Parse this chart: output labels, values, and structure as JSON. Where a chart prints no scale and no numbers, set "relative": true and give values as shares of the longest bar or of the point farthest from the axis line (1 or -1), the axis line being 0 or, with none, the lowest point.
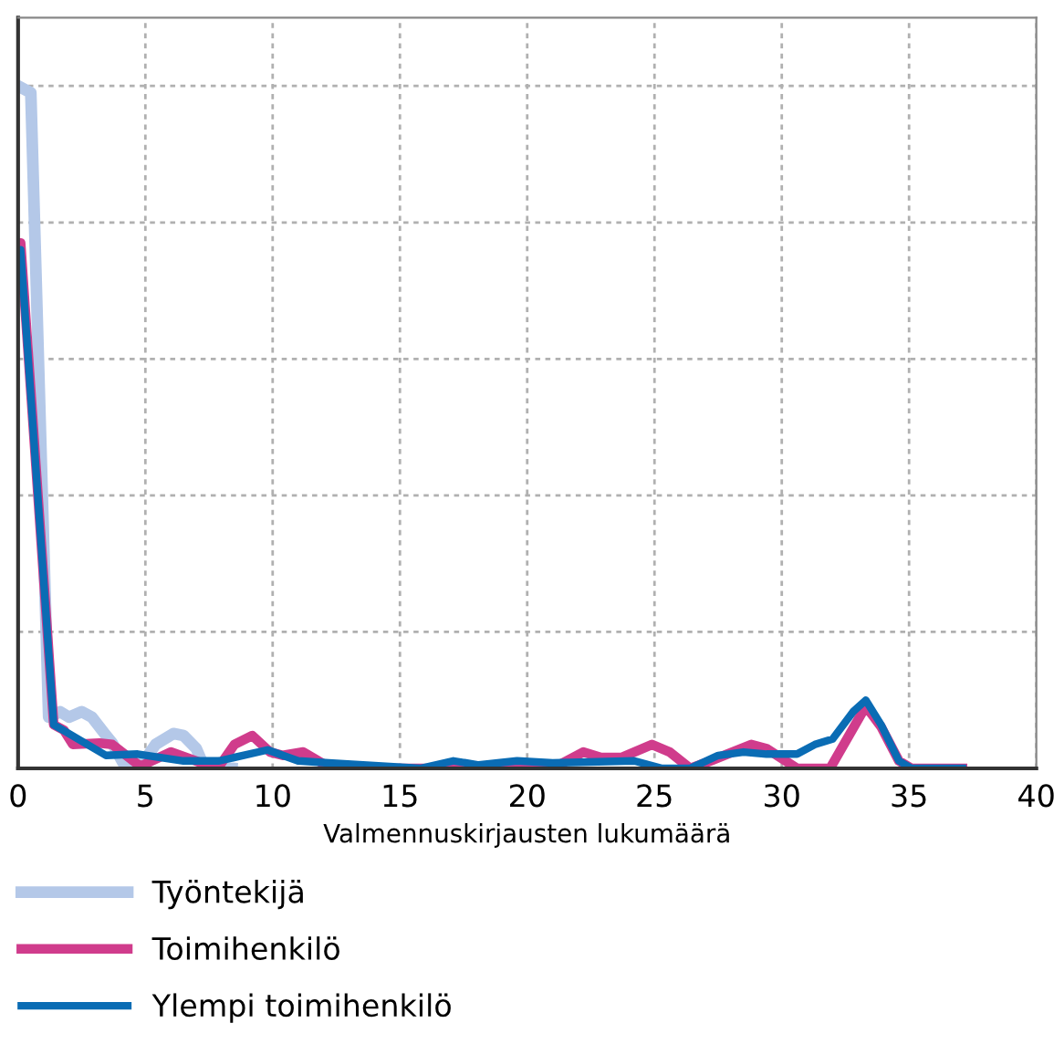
{
  "chart_data": {
    "type": "line",
    "xlabel": "Valmennuskirjausten lukumäärä",
    "relative": true,
    "xlim": [
      0,
      40
    ],
    "xticks": [
      0,
      5,
      10,
      15,
      20,
      25,
      30,
      35,
      40
    ],
    "grid": true,
    "legend": "bottom",
    "tick_labels": "x",
    "marker": "none",
    "line_style": "solid",
    "series": [
      {
        "name": "Työntekijä",
        "color": "#b4c8e8",
        "x": [
          0,
          0.5,
          1.2,
          1.65,
          2.0,
          2.5,
          2.9,
          3.4,
          3.7,
          4.2,
          4.8,
          5.4,
          6.1,
          6.5,
          7.0,
          7.3,
          8.4
        ],
        "values": [
          1.0,
          0.99,
          0.075,
          0.083,
          0.075,
          0.083,
          0.075,
          0.051,
          0.037,
          0.003,
          0.003,
          0.035,
          0.051,
          0.048,
          0.029,
          0.003,
          0
        ]
      },
      {
        "name": "Toimihenkilö",
        "color": "#d03c8c",
        "x": [
          0,
          0.1,
          1.4,
          1.8,
          2.15,
          3.2,
          3.7,
          4.8,
          6.0,
          7.2,
          7.9,
          8.5,
          9.2,
          9.9,
          10.4,
          11.2,
          12.3,
          21.0,
          22.2,
          22.9,
          23.7,
          24.9,
          25.6,
          26.4,
          27.2,
          28.8,
          29.4,
          30.6,
          31.9,
          33.3,
          33.9,
          34.6,
          35.1,
          37.1
        ],
        "values": [
          0.73,
          0.77,
          0.064,
          0.056,
          0.035,
          0.037,
          0.035,
          0.003,
          0.024,
          0.008,
          0.003,
          0.035,
          0.048,
          0.024,
          0.019,
          0.024,
          0,
          0,
          0.024,
          0.016,
          0.016,
          0.035,
          0.024,
          0,
          0.011,
          0.035,
          0.029,
          0,
          0,
          0.091,
          0.061,
          0.011,
          0,
          0
        ]
      },
      {
        "name": "Ylempi toimihenkilö",
        "color": "#0a6cb4",
        "x": [
          0,
          0.1,
          1.4,
          3.45,
          4.7,
          6.5,
          7.9,
          9.8,
          11.0,
          12.2,
          15.8,
          17.1,
          18.1,
          19.6,
          21.0,
          24.2,
          25.3,
          26.4,
          27.5,
          28.5,
          29.4,
          30.6,
          31.3,
          32.0,
          32.8,
          33.3,
          33.9,
          34.6,
          35.1,
          37.1
        ],
        "values": [
          0.73,
          0.76,
          0.064,
          0.019,
          0.021,
          0.011,
          0.011,
          0.027,
          0.011,
          0.008,
          0,
          0.011,
          0.005,
          0.011,
          0.008,
          0.011,
          0,
          0,
          0.019,
          0.024,
          0.021,
          0.021,
          0.035,
          0.043,
          0.083,
          0.1,
          0.064,
          0.011,
          0,
          0
        ]
      }
    ]
  }
}
